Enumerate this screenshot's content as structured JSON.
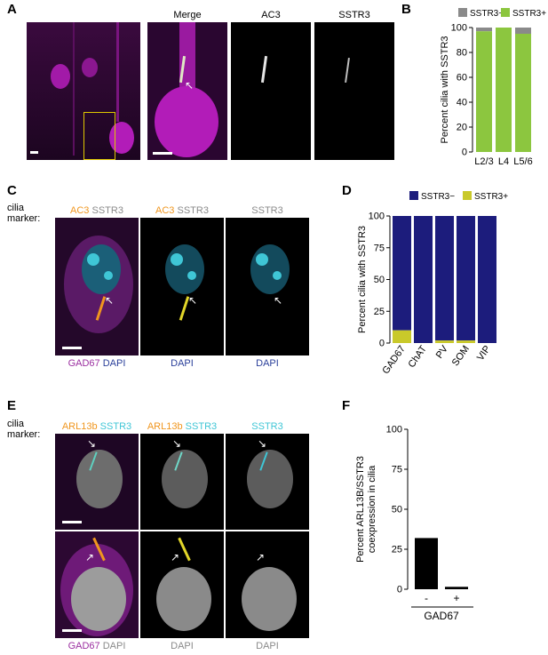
{
  "panels": {
    "A": {
      "label": "A",
      "headers": [
        "Merge",
        "AC3",
        "SSTR3"
      ]
    },
    "B": {
      "label": "B"
    },
    "C": {
      "label": "C",
      "cilia_marker": "cilia\nmarker:",
      "top": [
        {
          "a": "AC3",
          "b": "SSTR3"
        },
        {
          "a": "AC3",
          "b": "SSTR3"
        },
        {
          "a": "",
          "b": "SSTR3"
        }
      ],
      "bottom": [
        {
          "a": "GAD67",
          "b": "DAPI"
        },
        {
          "a": "",
          "b": "DAPI"
        },
        {
          "a": "",
          "b": "DAPI"
        }
      ]
    },
    "D": {
      "label": "D"
    },
    "E": {
      "label": "E",
      "cilia_marker": "cilia\nmarker:",
      "top": [
        {
          "a": "ARL13b",
          "b": "SSTR3"
        },
        {
          "a": "ARL13b",
          "b": "SSTR3"
        },
        {
          "a": "",
          "b": "SSTR3"
        }
      ],
      "bottom": [
        {
          "a": "GAD67",
          "b": "DAPI"
        },
        {
          "a": "",
          "b": "DAPI"
        },
        {
          "a": "",
          "b": "DAPI"
        }
      ]
    },
    "F": {
      "label": "F"
    }
  },
  "colors": {
    "sstr3_neg_B": "#8a8a8a",
    "sstr3_pos_B": "#8cc63f",
    "sstr3_neg_D": "#1c1c7c",
    "sstr3_pos_D": "#c9c92a",
    "magenta": "#a21aa8",
    "cyan": "#3fc6d6",
    "orange": "#f0961e"
  },
  "chart_data": [
    {
      "panel": "B",
      "type": "bar",
      "stacked": true,
      "categories": [
        "L2/3",
        "L4",
        "L5/6"
      ],
      "series": [
        {
          "name": "SSTR3+",
          "values": [
            97,
            100,
            95
          ]
        },
        {
          "name": "SSTR3−",
          "values": [
            3,
            0,
            5
          ]
        }
      ],
      "ylabel": "Percent cilia with SSTR3",
      "ylim": [
        0,
        100
      ],
      "yticks": [
        0,
        20,
        40,
        60,
        80,
        100
      ],
      "legend": [
        "SSTR3−",
        "SSTR3+"
      ],
      "legend_position": "top"
    },
    {
      "panel": "D",
      "type": "bar",
      "stacked": true,
      "categories": [
        "GAD67",
        "ChAT",
        "PV",
        "SOM",
        "VIP"
      ],
      "series": [
        {
          "name": "SSTR3+",
          "values": [
            10,
            0,
            2,
            2,
            0
          ]
        },
        {
          "name": "SSTR3−",
          "values": [
            90,
            100,
            98,
            98,
            100
          ]
        }
      ],
      "ylabel": "Percent cilia with SSTR3",
      "ylim": [
        0,
        100
      ],
      "yticks": [
        0,
        25,
        50,
        75,
        100
      ],
      "legend": [
        "SSTR3−",
        "SSTR3+"
      ],
      "legend_position": "top"
    },
    {
      "panel": "F",
      "type": "bar",
      "categories": [
        "-",
        "+"
      ],
      "values": [
        32,
        1.5
      ],
      "xlabel": "GAD67",
      "ylabel": "Percent ARL13B/SSTR3\ncoexpression in cilia",
      "ylim": [
        0,
        100
      ],
      "yticks": [
        0,
        25,
        50,
        75,
        100
      ]
    }
  ]
}
